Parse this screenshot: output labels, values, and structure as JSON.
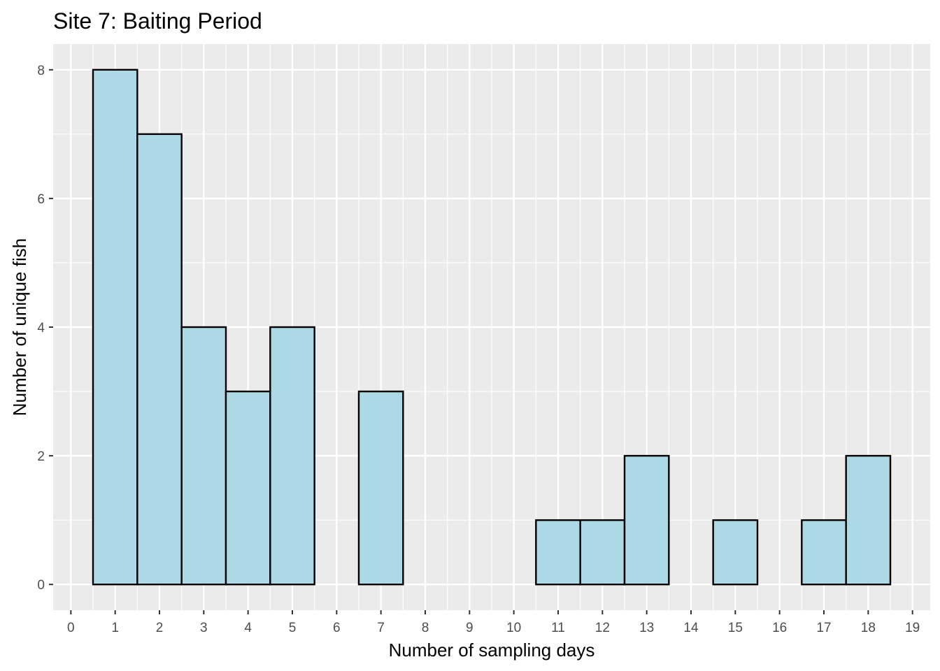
{
  "chart_data": {
    "type": "bar",
    "title": "Site 7: Baiting Period",
    "xlabel": "Number of sampling days",
    "ylabel": "Number of unique fish",
    "categories": [
      1,
      2,
      3,
      4,
      5,
      6,
      7,
      8,
      9,
      10,
      11,
      12,
      13,
      14,
      15,
      16,
      17,
      18
    ],
    "values": [
      8,
      7,
      4,
      3,
      4,
      0,
      3,
      0,
      0,
      0,
      1,
      1,
      2,
      0,
      1,
      0,
      1,
      2
    ],
    "xlim": [
      -0.4,
      19.4
    ],
    "ylim": [
      -0.4,
      8.4
    ],
    "x_ticks": [
      "0",
      "1",
      "2",
      "3",
      "4",
      "5",
      "6",
      "7",
      "8",
      "9",
      "10",
      "11",
      "12",
      "13",
      "14",
      "15",
      "16",
      "17",
      "18",
      "19"
    ],
    "y_ticks": [
      "0",
      "2",
      "4",
      "6",
      "8"
    ],
    "grid": true,
    "colors": {
      "bar_fill": "#add8e6",
      "bar_stroke": "#000000",
      "panel_background": "#ebebeb",
      "grid": "#ffffff"
    }
  }
}
